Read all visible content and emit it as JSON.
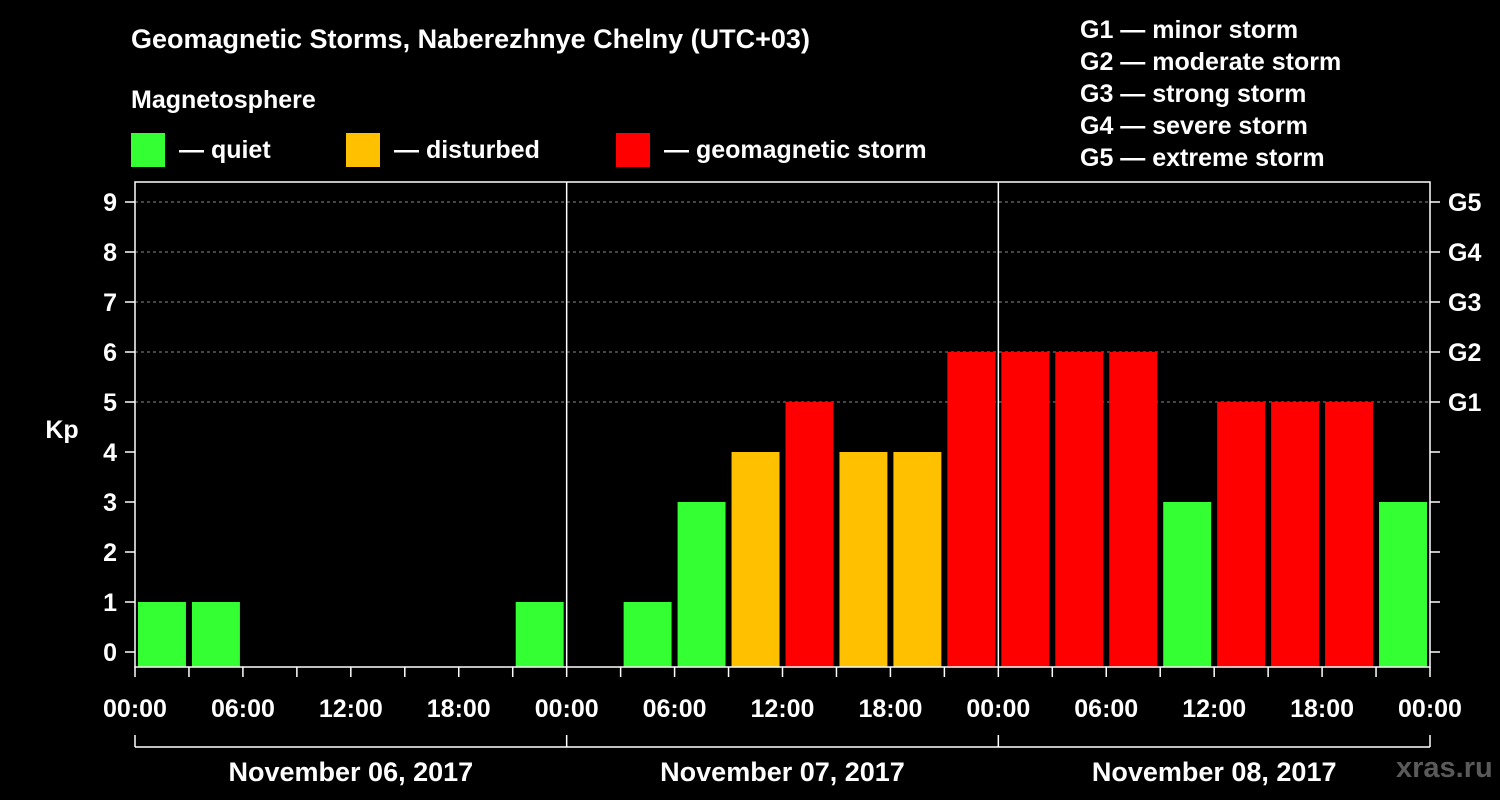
{
  "title": "Geomagnetic Storms, Naberezhnye Chelny (UTC+03)",
  "magnetosphere_label": "Magnetosphere",
  "legend": [
    {
      "label": "— quiet",
      "color": "#33ff33"
    },
    {
      "label": "— disturbed",
      "color": "#ffc000"
    },
    {
      "label": "— geomagnetic storm",
      "color": "#ff0000"
    }
  ],
  "storm_scale": [
    "G1 — minor storm",
    "G2 — moderate storm",
    "G3 — strong storm",
    "G4 — severe storm",
    "G5 — extreme storm"
  ],
  "site": "xras.ru",
  "chart_data": {
    "type": "bar",
    "ylabel": "Kp",
    "ylim": [
      0,
      9
    ],
    "y_ticks": [
      "0",
      "1",
      "2",
      "3",
      "4",
      "5",
      "6",
      "7",
      "8",
      "9"
    ],
    "right_ticks": [
      {
        "value": 5,
        "label": "G1"
      },
      {
        "value": 6,
        "label": "G2"
      },
      {
        "value": 7,
        "label": "G3"
      },
      {
        "value": 8,
        "label": "G4"
      },
      {
        "value": 9,
        "label": "G5"
      }
    ],
    "x_tick_labels": [
      "00:00",
      "06:00",
      "12:00",
      "18:00",
      "00:00",
      "06:00",
      "12:00",
      "18:00",
      "00:00",
      "06:00",
      "12:00",
      "18:00",
      "00:00"
    ],
    "days": [
      "November 06, 2017",
      "November 07, 2017",
      "November 08, 2017"
    ],
    "interval_hours": 3,
    "values": [
      1,
      1,
      0,
      0,
      0,
      0,
      0,
      1,
      0,
      1,
      3,
      4,
      5,
      4,
      4,
      6,
      6,
      6,
      6,
      3,
      5,
      5,
      5,
      3
    ],
    "colors": {
      "quiet": "#33ff33",
      "disturbed": "#ffc000",
      "storm": "#ff0000"
    },
    "grid": true
  }
}
